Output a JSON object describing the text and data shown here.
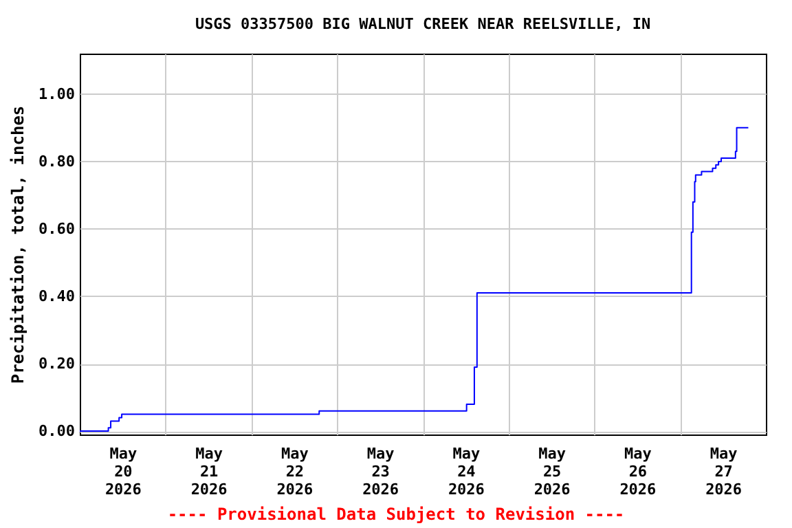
{
  "chart_data": {
    "type": "step",
    "title": "USGS 03357500 BIG WALNUT CREEK NEAR REELSVILLE, IN",
    "ylabel": "Precipitation, total, inches",
    "annotations": [
      "---- Provisional Data Subject to Revision ----"
    ],
    "x": [
      "2026-05-20T00:00",
      "2026-05-20T08:00",
      "2026-05-20T08:40",
      "2026-05-20T11:00",
      "2026-05-20T11:45",
      "2026-05-22T19:00",
      "2026-05-24T12:15",
      "2026-05-24T14:25",
      "2026-05-24T15:10",
      "2026-05-27T03:10",
      "2026-05-27T03:35",
      "2026-05-27T04:05",
      "2026-05-27T04:20",
      "2026-05-27T06:00",
      "2026-05-27T09:05",
      "2026-05-27T10:00",
      "2026-05-27T10:45",
      "2026-05-27T11:30",
      "2026-05-27T15:30",
      "2026-05-27T15:50",
      "2026-05-27T19:05"
    ],
    "series": [
      {
        "color": "#0000ff",
        "values": [
          0,
          0.01,
          0.03,
          0.04,
          0.05,
          0.06,
          0.08,
          0.19,
          0.41,
          0.59,
          0.68,
          0.74,
          0.76,
          0.77,
          0.78,
          0.79,
          0.8,
          0.81,
          0.83,
          0.9,
          0.9
        ]
      }
    ],
    "xlim": [
      "2026-05-20T00:00",
      "2026-05-28T00:00"
    ],
    "xticks": [
      {
        "value": "2026-05-20T12:00",
        "label": "May 20 2026"
      },
      {
        "value": "2026-05-21T12:00",
        "label": "May 21 2026"
      },
      {
        "value": "2026-05-22T12:00",
        "label": "May 22 2026"
      },
      {
        "value": "2026-05-23T12:00",
        "label": "May 23 2026"
      },
      {
        "value": "2026-05-24T12:00",
        "label": "May 24 2026"
      },
      {
        "value": "2026-05-25T12:00",
        "label": "May 25 2026"
      },
      {
        "value": "2026-05-26T12:00",
        "label": "May 26 2026"
      },
      {
        "value": "2026-05-27T12:00",
        "label": "May 27 2026"
      },
      {
        "value": "2026-05-21T00:00",
        "label": null
      },
      {
        "value": "2026-05-22T00:00",
        "label": null
      },
      {
        "value": "2026-05-23T00:00",
        "label": null
      },
      {
        "value": "2026-05-24T00:00",
        "label": null
      },
      {
        "value": "2026-05-25T00:00",
        "label": null
      },
      {
        "value": "2026-05-26T00:00",
        "label": null
      },
      {
        "value": "2026-05-27T00:00",
        "label": null
      }
    ],
    "ylim": [
      -0.01,
      1.12
    ],
    "yticks": [
      {
        "value": 0,
        "label": "0.00"
      },
      {
        "value": 0.2,
        "label": "0.20"
      },
      {
        "value": 0.4,
        "label": "0.40"
      },
      {
        "value": 0.6,
        "label": "0.60"
      },
      {
        "value": 0.8,
        "label": "0.80"
      },
      {
        "value": 1.0,
        "label": "1.00"
      }
    ],
    "grid": true
  }
}
